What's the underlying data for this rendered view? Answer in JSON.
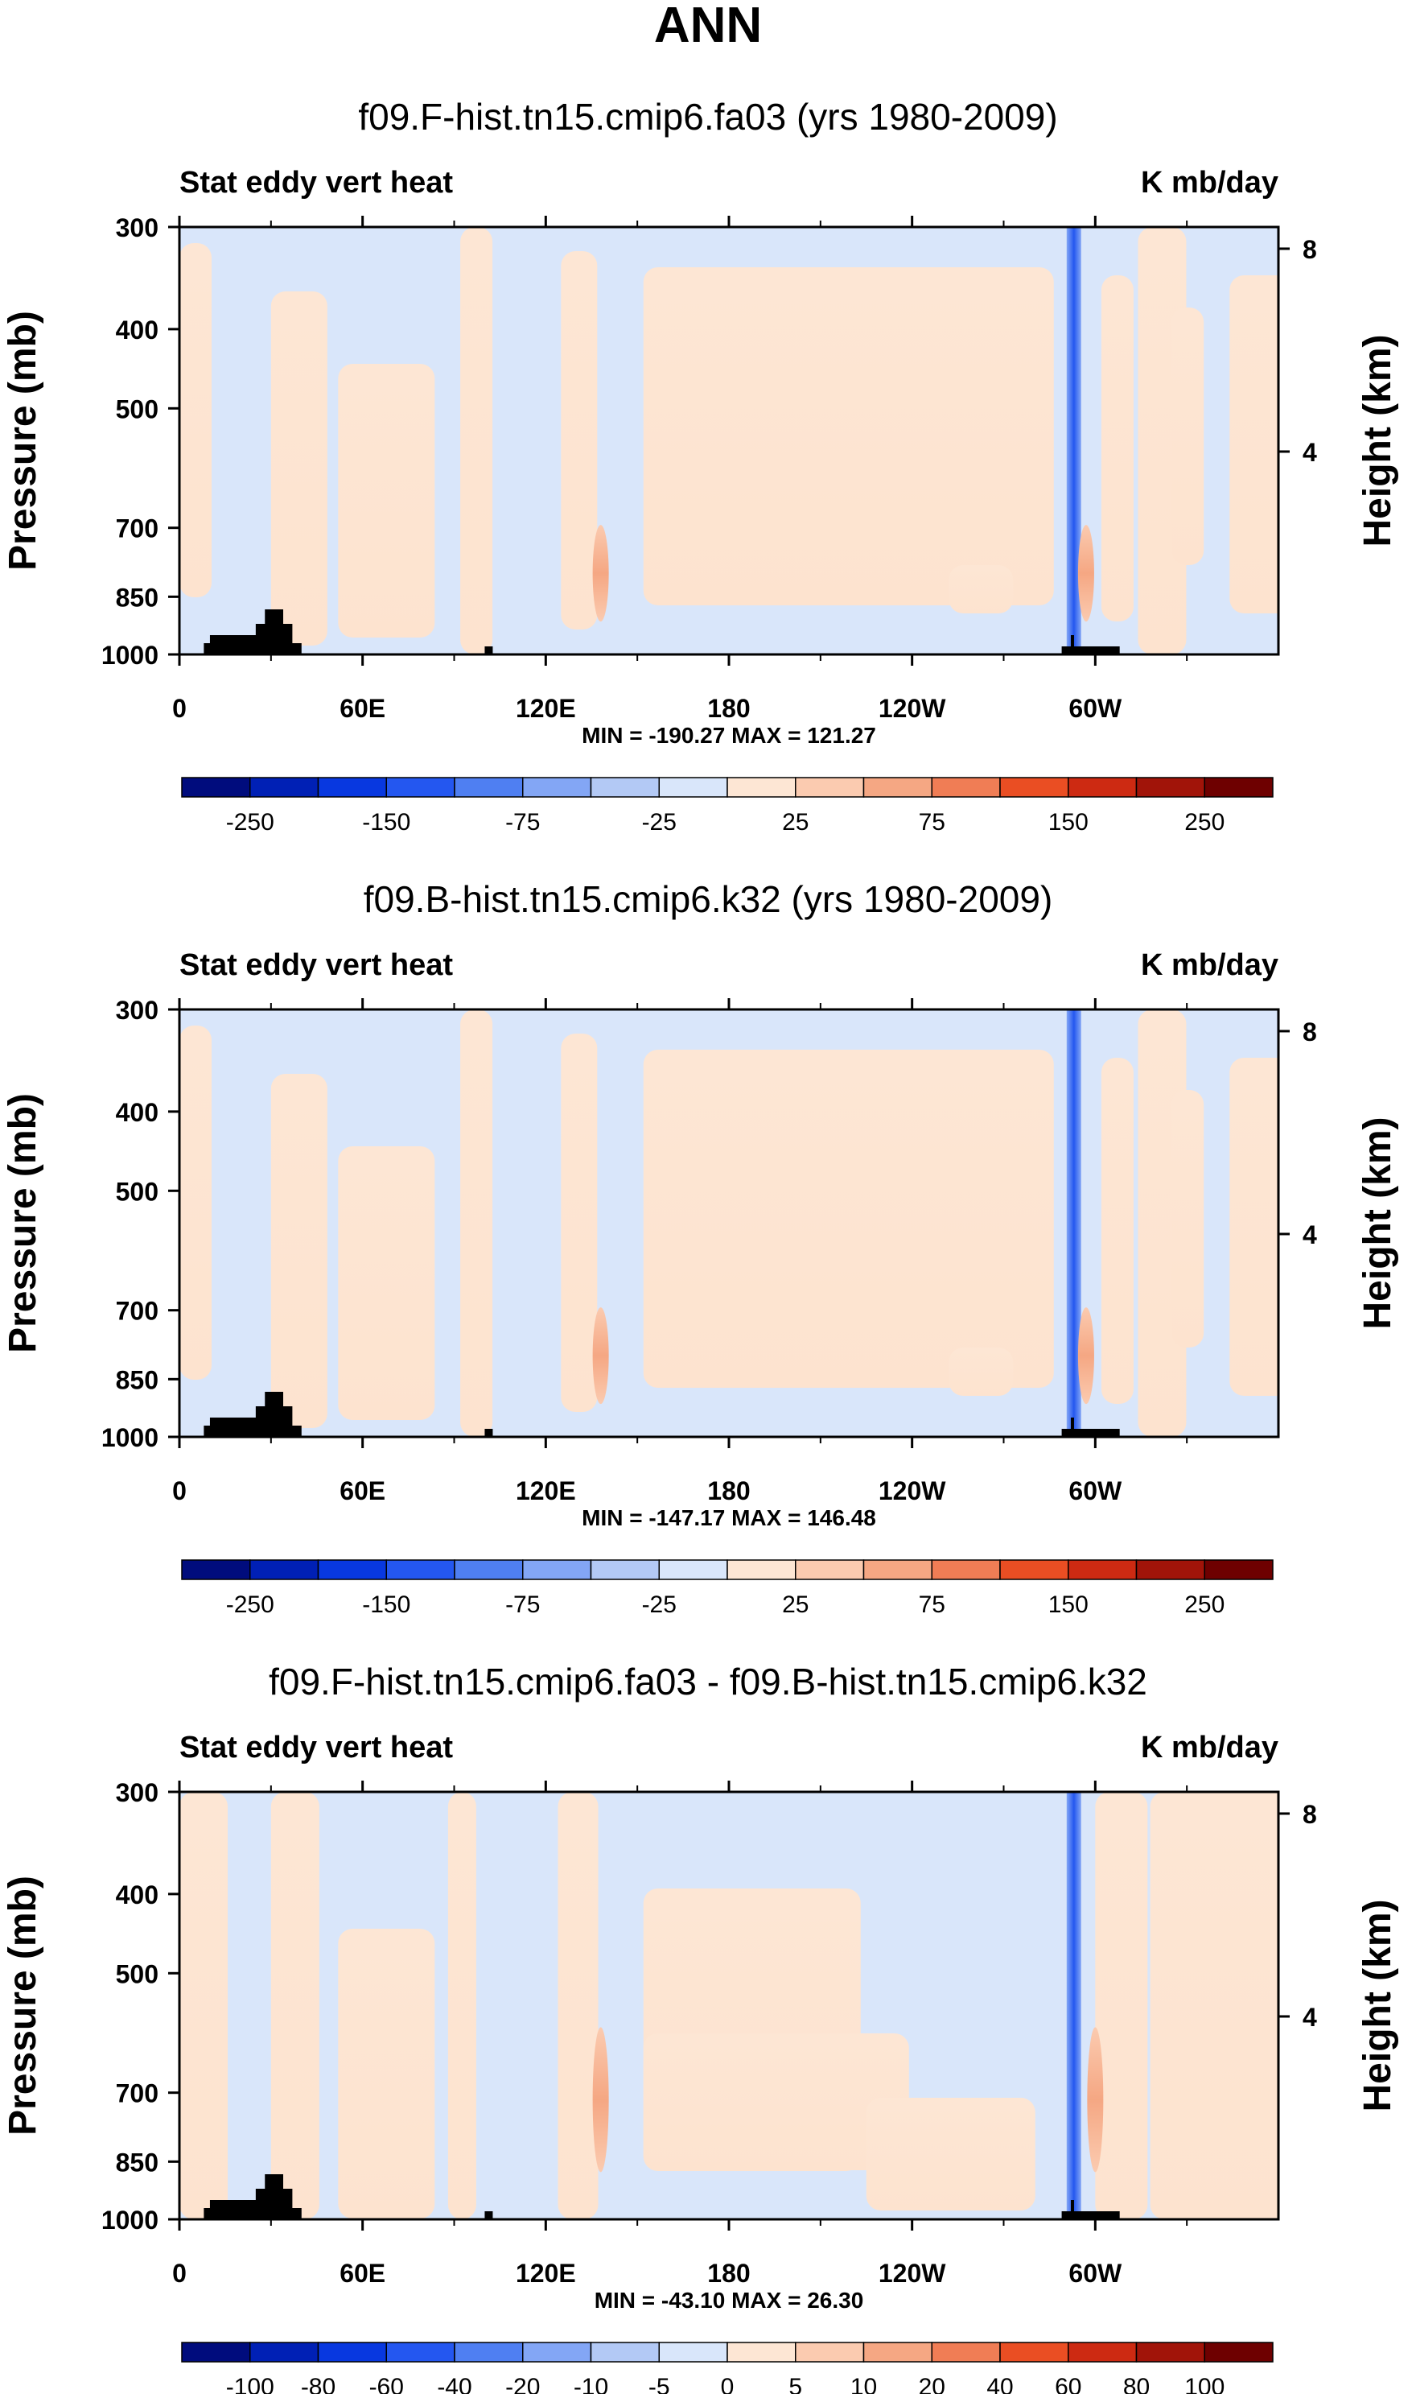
{
  "main_title": "ANN",
  "chart_data": [
    {
      "type": "heatmap",
      "title": "f09.F-hist.tn15.cmip6.fa03 (yrs 1980-2009)",
      "variable": "Stat eddy vert heat",
      "units": "K mb/day",
      "ylabel": "Pressure (mb)",
      "ylabel_right": "Height (km)",
      "y_ticks": [
        "300",
        "400",
        "500",
        "700",
        "850",
        "1000"
      ],
      "y_tick_values": [
        300,
        400,
        500,
        700,
        850,
        1000
      ],
      "right_ticks": [
        "8",
        "4"
      ],
      "right_tick_values": [
        8,
        4
      ],
      "x_ticks": [
        "0",
        "60E",
        "120E",
        "180",
        "120W",
        "60W"
      ],
      "x_tick_values": [
        0,
        60,
        120,
        180,
        240,
        300
      ],
      "x_range": [
        0,
        360
      ],
      "stats": "MIN = -190.27   MAX = 121.27",
      "colorbar_labels": [
        "-250",
        "-150",
        "-75",
        "-25",
        "25",
        "75",
        "150",
        "250"
      ],
      "colorbar_colors": [
        "#000c7d",
        "#0020b5",
        "#0838e0",
        "#2457f0",
        "#4f7ff2",
        "#83a6f5",
        "#b3c9f5",
        "#d9e6fa",
        "#fde6d4",
        "#fbcbb0",
        "#f5a783",
        "#f07d55",
        "#ea4e23",
        "#cd2a12",
        "#a11409",
        "#6e0000"
      ],
      "features": [
        {
          "lon": 138,
          "value": 90
        },
        {
          "lon": 293,
          "value": -190
        },
        {
          "lon": 297,
          "value": 121
        }
      ]
    },
    {
      "type": "heatmap",
      "title": "f09.B-hist.tn15.cmip6.k32 (yrs 1980-2009)",
      "variable": "Stat eddy vert heat",
      "units": "K mb/day",
      "ylabel": "Pressure (mb)",
      "ylabel_right": "Height (km)",
      "y_ticks": [
        "300",
        "400",
        "500",
        "700",
        "850",
        "1000"
      ],
      "y_tick_values": [
        300,
        400,
        500,
        700,
        850,
        1000
      ],
      "right_ticks": [
        "8",
        "4"
      ],
      "right_tick_values": [
        8,
        4
      ],
      "x_ticks": [
        "0",
        "60E",
        "120E",
        "180",
        "120W",
        "60W"
      ],
      "x_tick_values": [
        0,
        60,
        120,
        180,
        240,
        300
      ],
      "x_range": [
        0,
        360
      ],
      "stats": "MIN = -147.17   MAX = 146.48",
      "colorbar_labels": [
        "-250",
        "-150",
        "-75",
        "-25",
        "25",
        "75",
        "150",
        "250"
      ],
      "colorbar_colors": [
        "#000c7d",
        "#0020b5",
        "#0838e0",
        "#2457f0",
        "#4f7ff2",
        "#83a6f5",
        "#b3c9f5",
        "#d9e6fa",
        "#fde6d4",
        "#fbcbb0",
        "#f5a783",
        "#f07d55",
        "#ea4e23",
        "#cd2a12",
        "#a11409",
        "#6e0000"
      ],
      "features": [
        {
          "lon": 138,
          "value": 90
        },
        {
          "lon": 293,
          "value": -147
        },
        {
          "lon": 297,
          "value": 146
        }
      ]
    },
    {
      "type": "heatmap",
      "title": "f09.F-hist.tn15.cmip6.fa03 - f09.B-hist.tn15.cmip6.k32",
      "variable": "Stat eddy vert heat",
      "units": "K mb/day",
      "ylabel": "Pressure (mb)",
      "ylabel_right": "Height (km)",
      "y_ticks": [
        "300",
        "400",
        "500",
        "700",
        "850",
        "1000"
      ],
      "y_tick_values": [
        300,
        400,
        500,
        700,
        850,
        1000
      ],
      "right_ticks": [
        "8",
        "4"
      ],
      "right_tick_values": [
        8,
        4
      ],
      "x_ticks": [
        "0",
        "60E",
        "120E",
        "180",
        "120W",
        "60W"
      ],
      "x_tick_values": [
        0,
        60,
        120,
        180,
        240,
        300
      ],
      "x_range": [
        0,
        360
      ],
      "stats": "MIN = -43.10   MAX =  26.30",
      "colorbar_labels": [
        "-100",
        "-80",
        "-60",
        "-40",
        "-20",
        "-10",
        "-5",
        "0",
        "5",
        "10",
        "20",
        "40",
        "60",
        "80",
        "100"
      ],
      "colorbar_colors": [
        "#000c7d",
        "#0020b5",
        "#0838e0",
        "#2457f0",
        "#4f7ff2",
        "#83a6f5",
        "#b3c9f5",
        "#d9e6fa",
        "#fde6d4",
        "#fbcbb0",
        "#f5a783",
        "#f07d55",
        "#ea4e23",
        "#cd2a12",
        "#a11409",
        "#6e0000"
      ],
      "features": [
        {
          "lon": 138,
          "value": 10
        },
        {
          "lon": 293,
          "value": -43
        },
        {
          "lon": 300,
          "value": 26
        }
      ]
    }
  ]
}
